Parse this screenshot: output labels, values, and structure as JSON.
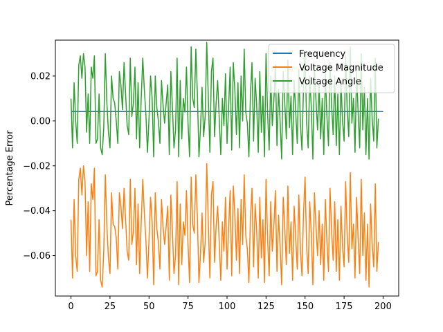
{
  "chart_data": {
    "type": "line",
    "title": "",
    "xlabel": "",
    "ylabel": "Percentage Error",
    "xlim": [
      -10,
      210
    ],
    "ylim": [
      -0.078,
      0.036
    ],
    "xticks": [
      0,
      25,
      50,
      75,
      100,
      125,
      150,
      175,
      200
    ],
    "yticks": [
      -0.06,
      -0.04,
      -0.02,
      0.0,
      0.02
    ],
    "xtick_labels": [
      "0",
      "25",
      "50",
      "75",
      "100",
      "125",
      "150",
      "175",
      "200"
    ],
    "ytick_labels": [
      "−0.06",
      "−0.04",
      "−0.02",
      "0.00",
      "0.02"
    ],
    "grid": false,
    "legend_position": "top-right",
    "x_start": 0,
    "x_step": 1,
    "series": [
      {
        "name": "Frequency",
        "color": "#1f77b4",
        "values": [
          0.0042,
          0.0042,
          0.0042,
          0.0042,
          0.0042,
          0.0042,
          0.0042,
          0.0042,
          0.0042,
          0.0042,
          0.0042,
          0.0042,
          0.0042,
          0.0042,
          0.0042,
          0.0042,
          0.0042,
          0.0042,
          0.0042,
          0.0042,
          0.0042,
          0.0042,
          0.0042,
          0.0042,
          0.0042,
          0.0042,
          0.0042,
          0.0042,
          0.0042,
          0.0042,
          0.0042,
          0.0042,
          0.0042,
          0.0042,
          0.0042,
          0.0042,
          0.0042,
          0.0042,
          0.0042,
          0.0042,
          0.0042,
          0.0042,
          0.0042,
          0.0042,
          0.0042,
          0.0042,
          0.0042,
          0.0042,
          0.0042,
          0.0042,
          0.0042,
          0.0042,
          0.0042,
          0.0042,
          0.0042,
          0.0042,
          0.0042,
          0.0042,
          0.0042,
          0.0042,
          0.0042,
          0.0042,
          0.0042,
          0.0042,
          0.0042,
          0.0042,
          0.0042,
          0.0042,
          0.0042,
          0.0042,
          0.0042,
          0.0042,
          0.0042,
          0.0042,
          0.0042,
          0.0042,
          0.0042,
          0.0042,
          0.0042,
          0.0042,
          0.0042,
          0.0042,
          0.0042,
          0.0042,
          0.0042,
          0.0042,
          0.0042,
          0.0042,
          0.0042,
          0.0042,
          0.0042,
          0.0042,
          0.0042,
          0.0042,
          0.0042,
          0.0042,
          0.0042,
          0.0042,
          0.0042,
          0.0042,
          0.0042,
          0.0042,
          0.0042,
          0.0042,
          0.0042,
          0.0042,
          0.0042,
          0.0042,
          0.0042,
          0.0042,
          0.0042,
          0.0042,
          0.0042,
          0.0042,
          0.0042,
          0.0042,
          0.0042,
          0.0042,
          0.0042,
          0.0042,
          0.0042,
          0.0042,
          0.0042,
          0.0042,
          0.0042,
          0.0042,
          0.0042,
          0.0042,
          0.0042,
          0.0042,
          0.0042,
          0.0042,
          0.0042,
          0.0042,
          0.0042,
          0.0042,
          0.0042,
          0.0042,
          0.0042,
          0.0042,
          0.0042,
          0.0042,
          0.0042,
          0.0042,
          0.0042,
          0.0042,
          0.0042,
          0.0042,
          0.0042,
          0.0042,
          0.0042,
          0.0042,
          0.0042,
          0.0042,
          0.0042,
          0.0042,
          0.0042,
          0.0042,
          0.0042,
          0.0042,
          0.0042,
          0.0042,
          0.0042,
          0.0042,
          0.0042,
          0.0042,
          0.0042,
          0.0042,
          0.0042,
          0.0042,
          0.0042,
          0.0042,
          0.0042,
          0.0042,
          0.0042,
          0.0042,
          0.0042,
          0.0042,
          0.0042,
          0.0042,
          0.0042,
          0.0042,
          0.0042,
          0.0042,
          0.0042,
          0.0042,
          0.0042,
          0.0042,
          0.0042,
          0.0042,
          0.0042,
          0.0042,
          0.0042,
          0.0042,
          0.0042,
          0.0042,
          0.0042,
          0.0042,
          0.0042,
          0.0042,
          0.0042
        ]
      },
      {
        "name": "Voltage Magnitude",
        "color": "#ff7f0e",
        "values": [
          -0.044,
          -0.07,
          -0.035,
          -0.06,
          -0.067,
          -0.026,
          -0.021,
          -0.033,
          -0.02,
          -0.027,
          -0.06,
          -0.036,
          -0.067,
          -0.028,
          -0.035,
          -0.021,
          -0.069,
          -0.067,
          -0.044,
          -0.071,
          -0.074,
          -0.058,
          -0.024,
          -0.047,
          -0.061,
          -0.068,
          -0.032,
          -0.046,
          -0.047,
          -0.052,
          -0.066,
          -0.032,
          -0.038,
          -0.048,
          -0.03,
          -0.044,
          -0.058,
          -0.062,
          -0.026,
          -0.055,
          -0.049,
          -0.03,
          -0.064,
          -0.037,
          -0.068,
          -0.045,
          -0.026,
          -0.041,
          -0.053,
          -0.07,
          -0.053,
          -0.034,
          -0.045,
          -0.073,
          -0.032,
          -0.048,
          -0.054,
          -0.066,
          -0.035,
          -0.047,
          -0.055,
          -0.047,
          -0.038,
          -0.071,
          -0.033,
          -0.049,
          -0.068,
          -0.06,
          -0.027,
          -0.073,
          -0.037,
          -0.064,
          -0.045,
          -0.051,
          -0.031,
          -0.055,
          -0.072,
          -0.025,
          -0.046,
          -0.05,
          -0.024,
          -0.043,
          -0.072,
          -0.059,
          -0.041,
          -0.063,
          -0.054,
          -0.019,
          -0.046,
          -0.07,
          -0.033,
          -0.027,
          -0.063,
          -0.047,
          -0.038,
          -0.054,
          -0.071,
          -0.045,
          -0.058,
          -0.034,
          -0.066,
          -0.048,
          -0.031,
          -0.069,
          -0.029,
          -0.041,
          -0.062,
          -0.039,
          -0.068,
          -0.035,
          -0.055,
          -0.024,
          -0.051,
          -0.057,
          -0.072,
          -0.043,
          -0.03,
          -0.065,
          -0.037,
          -0.049,
          -0.07,
          -0.034,
          -0.061,
          -0.044,
          -0.072,
          -0.026,
          -0.053,
          -0.069,
          -0.036,
          -0.058,
          -0.047,
          -0.031,
          -0.067,
          -0.042,
          -0.056,
          -0.073,
          -0.034,
          -0.048,
          -0.064,
          -0.029,
          -0.059,
          -0.045,
          -0.071,
          -0.038,
          -0.052,
          -0.066,
          -0.033,
          -0.057,
          -0.069,
          -0.041,
          -0.025,
          -0.056,
          -0.068,
          -0.036,
          -0.05,
          -0.073,
          -0.032,
          -0.047,
          -0.06,
          -0.04,
          -0.064,
          -0.046,
          -0.071,
          -0.035,
          -0.054,
          -0.067,
          -0.03,
          -0.049,
          -0.062,
          -0.036,
          -0.067,
          -0.044,
          -0.071,
          -0.038,
          -0.056,
          -0.065,
          -0.027,
          -0.051,
          -0.063,
          -0.023,
          -0.057,
          -0.046,
          -0.07,
          -0.034,
          -0.052,
          -0.068,
          -0.026,
          -0.06,
          -0.041,
          -0.071,
          -0.046,
          -0.074,
          -0.037,
          -0.055,
          -0.065,
          -0.028,
          -0.067,
          -0.054
        ]
      },
      {
        "name": "Voltage Angle",
        "color": "#2ca02c",
        "values": [
          0.01,
          -0.012,
          0.017,
          0.0,
          -0.01,
          0.025,
          0.029,
          0.019,
          0.03,
          0.024,
          -0.005,
          0.012,
          -0.01,
          0.024,
          0.019,
          0.029,
          -0.01,
          -0.008,
          0.012,
          -0.012,
          -0.015,
          -0.003,
          0.03,
          0.008,
          -0.005,
          -0.012,
          0.02,
          0.01,
          0.008,
          0.0,
          -0.01,
          0.022,
          0.016,
          0.005,
          0.026,
          0.012,
          -0.002,
          -0.006,
          0.028,
          0.002,
          0.008,
          0.024,
          -0.008,
          0.017,
          -0.012,
          0.01,
          0.028,
          0.014,
          0.003,
          -0.014,
          0.001,
          0.02,
          0.01,
          -0.016,
          0.02,
          0.006,
          0.0,
          -0.01,
          0.018,
          0.007,
          -0.001,
          0.008,
          0.016,
          -0.015,
          0.022,
          0.006,
          -0.012,
          -0.004,
          0.028,
          -0.016,
          0.018,
          -0.008,
          0.01,
          0.004,
          0.024,
          -0.001,
          -0.016,
          0.033,
          0.01,
          0.006,
          0.032,
          0.012,
          -0.016,
          -0.003,
          0.015,
          -0.007,
          0.002,
          0.035,
          0.01,
          -0.014,
          0.022,
          0.028,
          -0.007,
          0.008,
          0.018,
          0.001,
          -0.015,
          0.01,
          -0.002,
          0.021,
          -0.01,
          0.006,
          0.024,
          -0.013,
          0.026,
          0.014,
          -0.006,
          0.017,
          -0.012,
          0.02,
          0.0,
          0.032,
          0.004,
          -0.001,
          -0.016,
          0.012,
          0.026,
          -0.009,
          0.019,
          0.007,
          -0.014,
          0.022,
          -0.005,
          0.011,
          -0.016,
          0.03,
          0.003,
          -0.013,
          0.02,
          -0.002,
          0.009,
          0.025,
          -0.011,
          0.014,
          0.0,
          -0.017,
          0.022,
          0.008,
          -0.008,
          0.027,
          -0.003,
          0.011,
          -0.015,
          0.018,
          0.004,
          -0.01,
          0.023,
          -0.001,
          -0.013,
          0.015,
          0.031,
          -0.001,
          -0.012,
          0.02,
          0.006,
          -0.017,
          0.024,
          0.009,
          -0.004,
          0.016,
          -0.008,
          0.01,
          -0.015,
          0.021,
          0.002,
          -0.011,
          0.026,
          0.007,
          -0.006,
          0.02,
          -0.011,
          0.012,
          -0.015,
          0.018,
          0.0,
          -0.009,
          0.029,
          0.005,
          -0.007,
          0.033,
          -0.001,
          0.01,
          -0.014,
          0.022,
          0.004,
          -0.012,
          0.03,
          -0.004,
          0.015,
          -0.015,
          0.01,
          -0.017,
          0.019,
          0.001,
          -0.009,
          0.028,
          -0.012,
          0.001
        ]
      }
    ]
  }
}
